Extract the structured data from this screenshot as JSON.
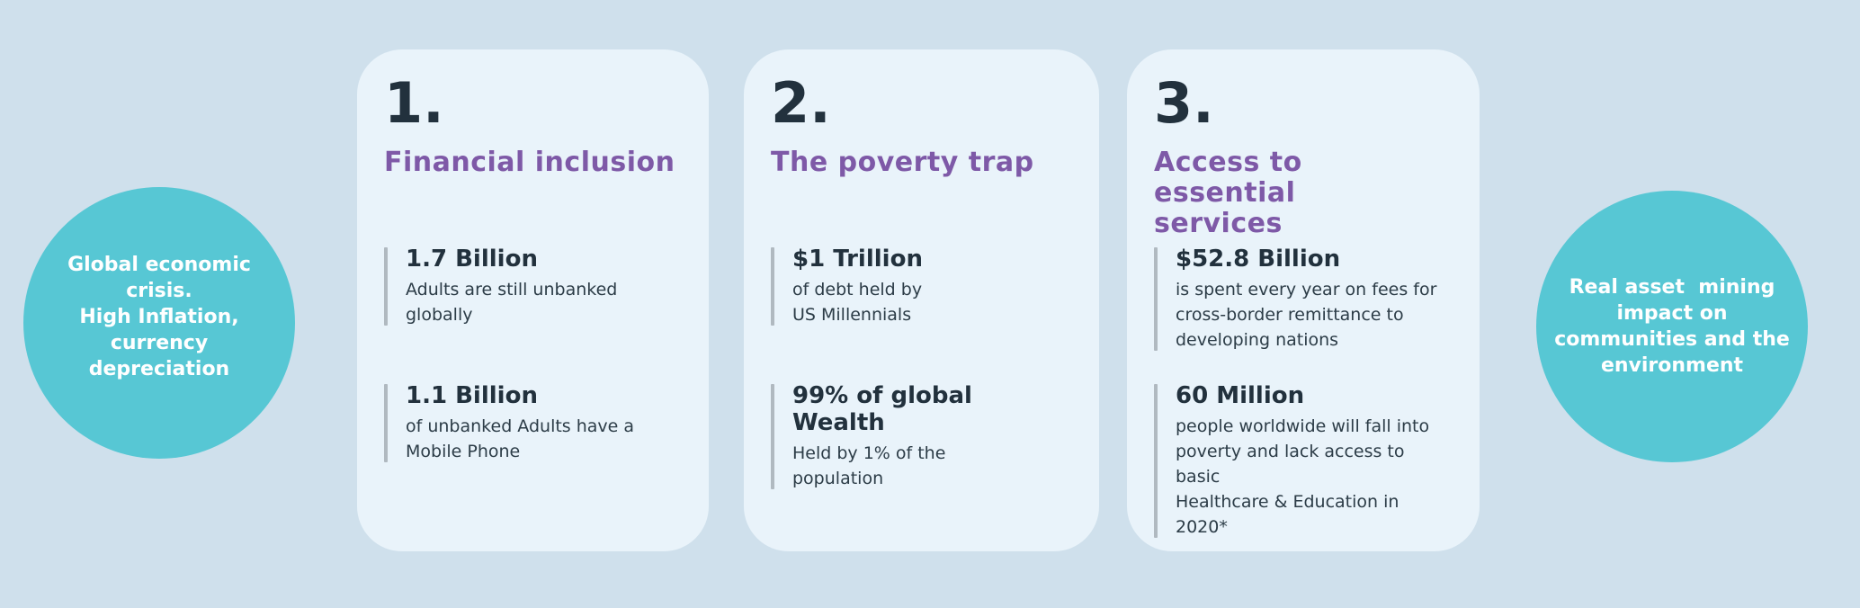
{
  "colors": {
    "page_background": "#cfe0ec",
    "card_background": "#e9f3fa",
    "bubble_teal": "#57c7d4",
    "heading_purple": "#7e59a7",
    "text_dark_navy": "#22313d",
    "stat_bar_gray": "#b0b9c0",
    "bubble_text_white": "#ffffff"
  },
  "side_notes": {
    "left": {
      "text": "Global economic\ncrisis.\nHigh Inflation,\ncurrency\ndepreciation"
    },
    "right": {
      "text": "Real asset  mining\nimpact on\ncommunities and the\nenvironment"
    }
  },
  "cards": [
    {
      "number": "1.",
      "heading": "Financial inclusion",
      "stats": [
        {
          "value": "1.7 Billion",
          "description": "Adults are still unbanked\nglobally"
        },
        {
          "value": "1.1 Billion",
          "description": "of unbanked Adults have a\nMobile Phone"
        }
      ]
    },
    {
      "number": "2.",
      "heading": "The poverty trap",
      "stats": [
        {
          "value": "$1 Trillion",
          "description": "of debt held by\nUS Millennials"
        },
        {
          "value": "99% of global Wealth",
          "description": "Held by 1% of the\npopulation"
        }
      ]
    },
    {
      "number": "3.",
      "heading": "Access to essential\nservices",
      "stats": [
        {
          "value": "$52.8 Billion",
          "description": "is spent every year on fees for\ncross-border remittance to\ndeveloping nations"
        },
        {
          "value": "60 Million",
          "description": "people worldwide will fall into\npoverty and lack access to basic\nHealthcare & Education in 2020*"
        }
      ]
    }
  ]
}
